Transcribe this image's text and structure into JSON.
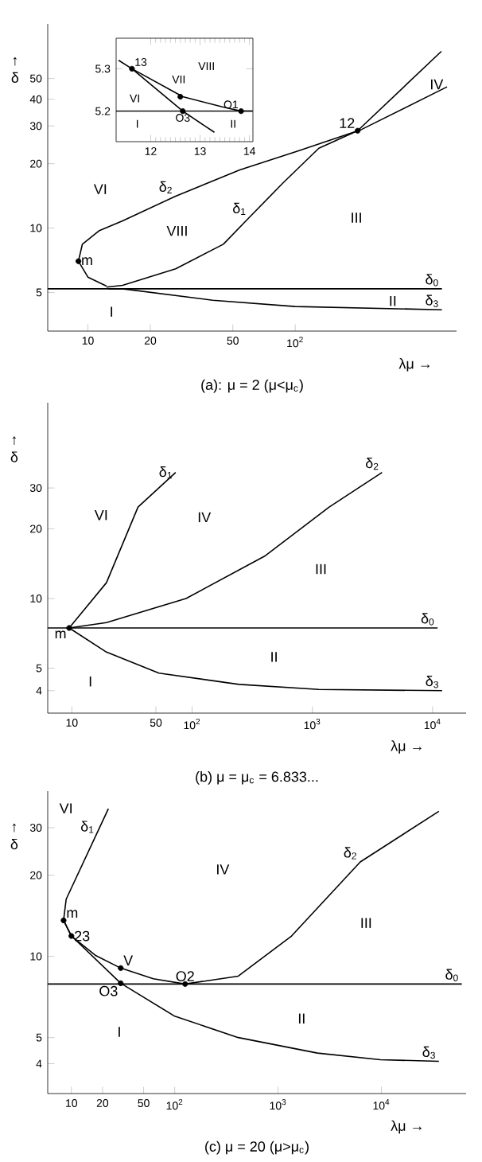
{
  "chart_data": [
    {
      "type": "line",
      "title": "(a): μ = 2 (μ<μ$_{c}$)",
      "xlabel": "λμ →",
      "ylabel": "↑ δ",
      "log": "xy",
      "xlim": [
        6.4,
        600
      ],
      "ylim": [
        3.3,
        90
      ],
      "xticks": [
        10,
        20,
        50,
        {
          "value": 100,
          "label": "10$^{2}$"
        }
      ],
      "yticks": [
        5,
        10,
        20,
        30,
        40,
        50
      ],
      "series": [
        {
          "name": "δ$_{0}$",
          "color": "#000000",
          "x": [
            6.4,
            510
          ],
          "values": [
            5.2,
            5.2
          ]
        },
        {
          "name": "δ$_{1}$",
          "color": "#000000",
          "x": [
            12.3,
            14.7,
            26.5,
            45,
            60,
            87,
            130,
            200,
            507
          ],
          "values": [
            5.3,
            5.4,
            6.45,
            8.4,
            11.2,
            16.2,
            23.6,
            28.5,
            67
          ]
        },
        {
          "name": "δ$_{2}$",
          "color": "#000000",
          "x": [
            12.3,
            10,
            9.0,
            9.4,
            11.3,
            14.7,
            26.5,
            54,
            103,
            209,
            540
          ],
          "values": [
            5.35,
            5.9,
            7.0,
            8.4,
            9.7,
            10.8,
            14.1,
            18.7,
            22.9,
            28.9,
            45.7
          ]
        },
        {
          "name": "δ$_{3}$",
          "color": "#000000",
          "x": [
            12.6,
            14.7,
            40,
            100,
            510
          ],
          "values": [
            5.2,
            5.2,
            4.6,
            4.3,
            4.15
          ]
        },
        {
          "type": "scatter",
          "marker": "circle",
          "color": "#000000",
          "x": [
            9.0,
            200
          ],
          "values": [
            7.0,
            28.5
          ]
        }
      ],
      "annotations": [
        "VI",
        "VIII",
        "III",
        "IV",
        "II",
        "I",
        {
          "text": "m",
          "x": 9.0,
          "y": 7.0
        },
        {
          "text": "12",
          "x": 200,
          "y": 28.5
        }
      ]
    },
    {
      "type": "line",
      "xlim": [
        11.3,
        14.07
      ],
      "ylim": [
        5.128,
        5.372
      ],
      "xticks": [
        12,
        13,
        14
      ],
      "yticks": [
        5.2,
        5.3
      ],
      "series": [
        {
          "color": "#000000",
          "x": [
            11.3,
            14.07
          ],
          "values": [
            5.2,
            5.2
          ]
        },
        {
          "color": "#000000",
          "x": [
            11.35,
            11.62,
            12.65,
            13.45,
            13.83,
            14.05
          ],
          "values": [
            5.32,
            5.3,
            5.234,
            5.21,
            5.2,
            5.2
          ]
        },
        {
          "color": "#000000",
          "x": [
            11.62,
            12.65,
            13.29
          ],
          "values": [
            5.3,
            5.2,
            5.15
          ]
        },
        {
          "type": "scatter",
          "marker": "circle",
          "color": "#000000",
          "x": [
            11.62,
            12.6,
            12.65,
            13.83
          ],
          "values": [
            5.3,
            5.234,
            5.2,
            5.2
          ]
        }
      ],
      "annotations": [
        "VIII",
        "VI",
        "VII",
        "I",
        "II",
        {
          "text": "13",
          "x": 11.62,
          "y": 5.3
        },
        {
          "text": "O3",
          "x": 12.65,
          "y": 5.2
        },
        {
          "text": "O1",
          "x": 13.83,
          "y": 5.2
        }
      ]
    },
    {
      "type": "line",
      "title": "(b) μ = μ$_{c}$ = 6.833...",
      "xlabel": "λμ →",
      "ylabel": "↑ δ",
      "log": "xy",
      "xlim": [
        6.3,
        19000
      ],
      "ylim": [
        3.2,
        70
      ],
      "xticks": [
        10,
        50,
        {
          "value": 100,
          "label": "10$^{2}$"
        },
        {
          "value": 1000,
          "label": "10$^{3}$"
        },
        {
          "value": 10000,
          "label": "10$^{4}$"
        }
      ],
      "yticks": [
        4,
        5,
        10,
        20,
        30
      ],
      "series": [
        {
          "name": "δ$_{0}$",
          "color": "#000000",
          "x": [
            6.3,
            11000
          ],
          "values": [
            7.46,
            7.46
          ]
        },
        {
          "name": "δ$_{1}$",
          "color": "#000000",
          "x": [
            9.5,
            19.4,
            35.5,
            73
          ],
          "values": [
            7.46,
            11.7,
            24.8,
            35
          ]
        },
        {
          "name": "δ$_{2}$",
          "color": "#000000",
          "x": [
            9.5,
            19.4,
            89,
            407,
            1380,
            3800
          ],
          "values": [
            7.46,
            7.87,
            10,
            15.3,
            24.8,
            35
          ]
        },
        {
          "name": "δ$_{3}$",
          "color": "#000000",
          "x": [
            9.5,
            19.4,
            53,
            245,
            1130,
            12000
          ],
          "values": [
            7.46,
            5.87,
            4.76,
            4.26,
            4.05,
            4.0
          ]
        },
        {
          "type": "scatter",
          "marker": "circle",
          "color": "#000000",
          "x": [
            9.5
          ],
          "values": [
            7.46
          ]
        }
      ],
      "annotations": [
        "VI",
        "IV",
        "III",
        "II",
        "I",
        {
          "text": "m",
          "x": 9.5,
          "y": 7.46
        }
      ]
    },
    {
      "type": "line",
      "title": "(c) μ = 20 (μ>μ$_{c}$)",
      "xlabel": "λμ →",
      "ylabel": "↑ δ",
      "log": "xy",
      "xlim": [
        5.9,
        66000
      ],
      "ylim": [
        3.1,
        41
      ],
      "xticks": [
        10,
        20,
        50,
        {
          "value": 100,
          "label": "10$^{2}$"
        },
        {
          "value": 1000,
          "label": "10$^{3}$"
        },
        {
          "value": 10000,
          "label": "10$^{4}$"
        }
      ],
      "yticks": [
        4,
        5,
        10,
        20,
        30
      ],
      "series": [
        {
          "name": "δ$_{0}$",
          "color": "#000000",
          "x": [
            5.9,
            60000
          ],
          "values": [
            7.9,
            7.9
          ]
        },
        {
          "name": "δ$_{1}$",
          "color": "#000000",
          "x": [
            8.4,
            8.9,
            22.8
          ],
          "values": [
            13.6,
            16.3,
            35.3
          ]
        },
        {
          "name": "δ$_{2}$",
          "color": "#000000",
          "x": [
            8.4,
            10,
            17,
            30,
            62,
            126,
            412,
            1350,
            6240,
            36000
          ],
          "values": [
            13.6,
            11.9,
            10.1,
            9.05,
            8.26,
            7.9,
            8.45,
            11.9,
            22.4,
            34.5
          ]
        },
        {
          "name": "δ$_{3}$",
          "color": "#000000",
          "x": [
            8.4,
            10,
            30,
            100,
            412,
            2400,
            9800,
            36000
          ],
          "values": [
            13.6,
            11.9,
            7.95,
            6.0,
            5.0,
            4.38,
            4.14,
            4.08
          ]
        },
        {
          "type": "scatter",
          "marker": "circle",
          "color": "#000000",
          "x": [
            8.4,
            10,
            30,
            30,
            126
          ],
          "values": [
            13.6,
            11.9,
            9.05,
            7.95,
            7.9
          ]
        }
      ],
      "annotations": [
        "VI",
        "IV",
        "III",
        "II",
        "I",
        {
          "text": "m",
          "x": 8.4,
          "y": 13.6
        },
        {
          "text": "23",
          "x": 10,
          "y": 11.9
        },
        {
          "text": "V",
          "x": 30,
          "y": 9.05
        },
        {
          "text": "O3",
          "x": 30,
          "y": 7.95
        },
        {
          "text": "O2",
          "x": 126,
          "y": 7.9
        }
      ]
    }
  ]
}
